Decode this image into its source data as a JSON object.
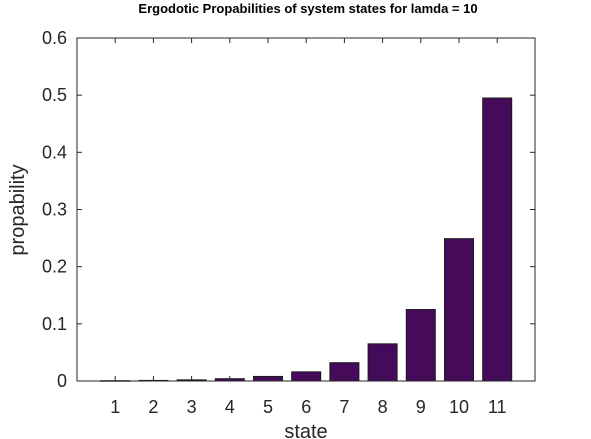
{
  "chart_data": {
    "type": "bar",
    "title": "Ergodotic Propabilities of system states for lamda =  10",
    "xlabel": "state",
    "ylabel": "propability",
    "categories": [
      "1",
      "2",
      "3",
      "4",
      "5",
      "6",
      "7",
      "8",
      "9",
      "10",
      "11"
    ],
    "values": [
      0.0005,
      0.001,
      0.002,
      0.004,
      0.008,
      0.016,
      0.032,
      0.065,
      0.125,
      0.249,
      0.495
    ],
    "ylim": [
      0,
      0.6
    ],
    "yticks": [
      "0",
      "0.1",
      "0.2",
      "0.3",
      "0.4",
      "0.5",
      "0.6"
    ],
    "grid": false,
    "colors": {
      "bar_fill": "#460a5a",
      "bar_edge": "#1a1a1a",
      "axis": "#262626"
    }
  }
}
